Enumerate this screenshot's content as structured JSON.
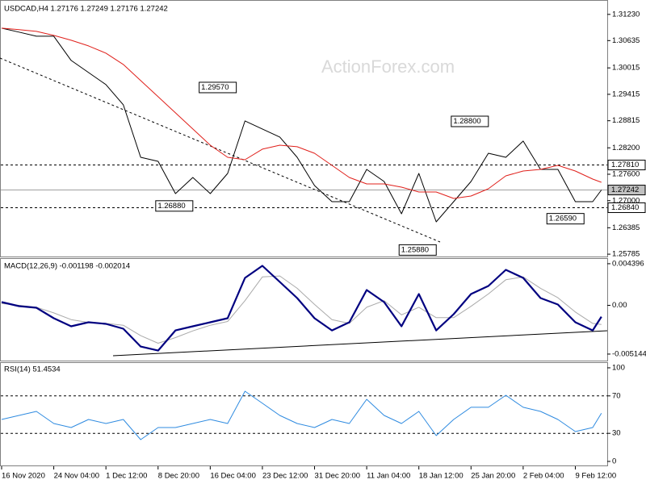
{
  "chart_data": [
    {
      "type": "line",
      "title": "USDCAD,H4  1.27176 1.27249 1.27176 1.27242",
      "watermark": "ActionForex.com",
      "x": [
        0,
        2,
        4,
        6,
        8,
        10,
        12,
        14,
        16,
        18,
        20,
        22,
        24,
        26,
        28,
        30,
        32,
        34,
        36,
        38,
        40,
        42,
        44,
        46,
        48,
        50,
        52,
        54,
        56,
        58,
        60,
        62,
        64,
        66,
        68,
        69
      ],
      "xlim": [
        0,
        69.3
      ],
      "ylim": [
        1.2575,
        1.3152
      ],
      "yticks": [
        {
          "value": 1.3123,
          "label": "1.31230"
        },
        {
          "value": 1.30635,
          "label": "1.30635"
        },
        {
          "value": 1.30015,
          "label": "1.30015"
        },
        {
          "value": 1.29415,
          "label": "1.29415"
        },
        {
          "value": 1.28815,
          "label": "1.28815"
        },
        {
          "value": 1.282,
          "label": "1.28200"
        },
        {
          "value": 1.276,
          "label": "1.27600"
        },
        {
          "value": 1.27,
          "label": "1.27000"
        },
        {
          "value": 1.26385,
          "label": "1.26385"
        },
        {
          "value": 1.25785,
          "label": "1.25785"
        }
      ],
      "series": [
        {
          "color": "#000000",
          "width": 1,
          "values": [
            1.30918,
            1.30827,
            1.30735,
            1.30735,
            1.30185,
            1.2991,
            1.29635,
            1.29177,
            1.27985,
            1.27894,
            1.2716,
            1.27527,
            1.2716,
            1.27619,
            1.2881,
            1.28627,
            1.28444,
            1.27985,
            1.27344,
            1.26977,
            1.26977,
            1.2771,
            1.27435,
            1.26702,
            1.27619,
            1.26519,
            1.26977,
            1.27435,
            1.28077,
            1.27985,
            1.28352,
            1.2771,
            1.2771,
            1.26977,
            1.26977,
            1.27242
          ]
        },
        {
          "color": "#e0201b",
          "width": 1,
          "values": [
            1.30918,
            1.30882,
            1.30845,
            1.30753,
            1.30643,
            1.30515,
            1.3035,
            1.30093,
            1.29727,
            1.2936,
            1.28994,
            1.28627,
            1.2826,
            1.27985,
            1.2793,
            1.28169,
            1.2826,
            1.28224,
            1.28077,
            1.27802,
            1.27527,
            1.2738,
            1.2738,
            1.27307,
            1.27197,
            1.27197,
            1.27051,
            1.27105,
            1.27271,
            1.27564,
            1.27674,
            1.2771,
            1.27802,
            1.27674,
            1.2749,
            1.27417
          ]
        }
      ],
      "levels": [
        {
          "value": 1.2781,
          "label": "1.27810",
          "style": "dashed"
        },
        {
          "value": 1.27242,
          "label": "1.27242",
          "style": "current"
        },
        {
          "value": 1.2684,
          "label": "1.26840",
          "style": "dashed"
        }
      ],
      "annotations": [
        {
          "value": 1.2957,
          "label": "1.29570",
          "x": 27
        },
        {
          "value": 1.2688,
          "label": "1.26880",
          "x": 22
        },
        {
          "value": 1.288,
          "label": "1.28800",
          "x": 56
        },
        {
          "value": 1.2659,
          "label": "1.26590",
          "x": 67
        },
        {
          "value": 1.2588,
          "label": "1.25880",
          "x": 50
        }
      ]
    },
    {
      "type": "line",
      "title": "MACD(12,26,9) -0.001198 -0.002014",
      "x": [
        0,
        2,
        4,
        6,
        8,
        10,
        12,
        14,
        16,
        18,
        20,
        22,
        24,
        26,
        28,
        30,
        32,
        34,
        36,
        38,
        40,
        42,
        44,
        46,
        48,
        50,
        52,
        54,
        56,
        58,
        60,
        62,
        64,
        66,
        68,
        69
      ],
      "xlim": [
        0,
        69.3
      ],
      "ylim": [
        -0.00583,
        0.0049
      ],
      "yticks": [
        {
          "value": 0.004396,
          "label": "0.004396"
        },
        {
          "value": 0,
          "label": "0.00"
        },
        {
          "value": -0.005144,
          "label": "-0.005144"
        }
      ],
      "series": [
        {
          "color": "#aaaaaa",
          "width": 1,
          "values": [
            0.0002,
            0,
            -0.0002,
            -0.0008,
            -0.0015,
            -0.0018,
            -0.0019,
            -0.0021,
            -0.0032,
            -0.004,
            -0.0034,
            -0.0027,
            -0.0021,
            -0.0017,
            0.0005,
            0.003,
            0.0031,
            0.0018,
            0.0001,
            -0.0015,
            -0.0019,
            -0.0002,
            0.0005,
            -0.001,
            -0.0002,
            -0.0013,
            -0.0013,
            -0.0001,
            0.0012,
            0.0027,
            0.003,
            0.0018,
            0.0008,
            -0.0007,
            -0.0019,
            -0.002014
          ]
        },
        {
          "color": "#000080",
          "width": 2.2,
          "values": [
            0.00034,
            -8.5e-05,
            -0.000256,
            -0.001363,
            -0.002215,
            -0.001789,
            -0.001959,
            -0.00247,
            -0.004344,
            -0.00477,
            -0.002641,
            -0.002215,
            -0.001789,
            -0.001363,
            0.002896,
            0.004174,
            0.00247,
            0.000767,
            -0.001363,
            -0.002641,
            -0.001789,
            0.001618,
            0.000341,
            -0.002215,
            0.001193,
            -0.002641,
            -0.000937,
            0.001193,
            0.002044,
            0.003748,
            0.002896,
            0.000767,
            8.5e-05,
            -0.001789,
            -0.002641,
            -0.001198
          ]
        }
      ]
    },
    {
      "type": "line",
      "title": "RSI(14) 51.4534",
      "x": [
        0,
        2,
        4,
        6,
        8,
        10,
        12,
        14,
        16,
        18,
        20,
        22,
        24,
        26,
        28,
        30,
        32,
        34,
        36,
        38,
        40,
        42,
        44,
        46,
        48,
        50,
        52,
        54,
        56,
        58,
        60,
        62,
        64,
        66,
        68,
        69
      ],
      "xlim": [
        0,
        69.3
      ],
      "ylim": [
        -4.3,
        106
      ],
      "yticks": [
        100,
        70,
        30,
        0
      ],
      "xticks": [
        {
          "value": 0,
          "label": "16 Nov 2020"
        },
        {
          "value": 6,
          "label": "24 Nov 04:00"
        },
        {
          "value": 12,
          "label": "1 Dec 12:00"
        },
        {
          "value": 18,
          "label": "8 Dec 20:00"
        },
        {
          "value": 24,
          "label": "16 Dec 04:00"
        },
        {
          "value": 30,
          "label": "23 Dec 12:00"
        },
        {
          "value": 36,
          "label": "31 Dec 20:00"
        },
        {
          "value": 42,
          "label": "11 Jan 04:00"
        },
        {
          "value": 48,
          "label": "18 Jan 12:00"
        },
        {
          "value": 54,
          "label": "25 Jan 20:00"
        },
        {
          "value": 60,
          "label": "2 Feb 04:00"
        },
        {
          "value": 66,
          "label": "9 Feb 12:00"
        }
      ],
      "series": [
        {
          "color": "#2f8be0",
          "width": 1,
          "values": [
            44.8,
            49.1,
            53.4,
            40.5,
            36.2,
            44.8,
            40.5,
            44.8,
            23.3,
            36.2,
            36.2,
            40.5,
            44.8,
            40.5,
            75,
            62.1,
            49.1,
            40.5,
            36.2,
            44.8,
            40.5,
            66.4,
            49.1,
            40.5,
            53.4,
            27.6,
            44.8,
            57.8,
            57.8,
            70.7,
            57.8,
            53.4,
            44.8,
            31.9,
            36.2,
            51.45
          ]
        }
      ],
      "levels": [
        {
          "value": 70,
          "style": "dashed"
        },
        {
          "value": 30,
          "style": "dashed"
        }
      ]
    }
  ]
}
